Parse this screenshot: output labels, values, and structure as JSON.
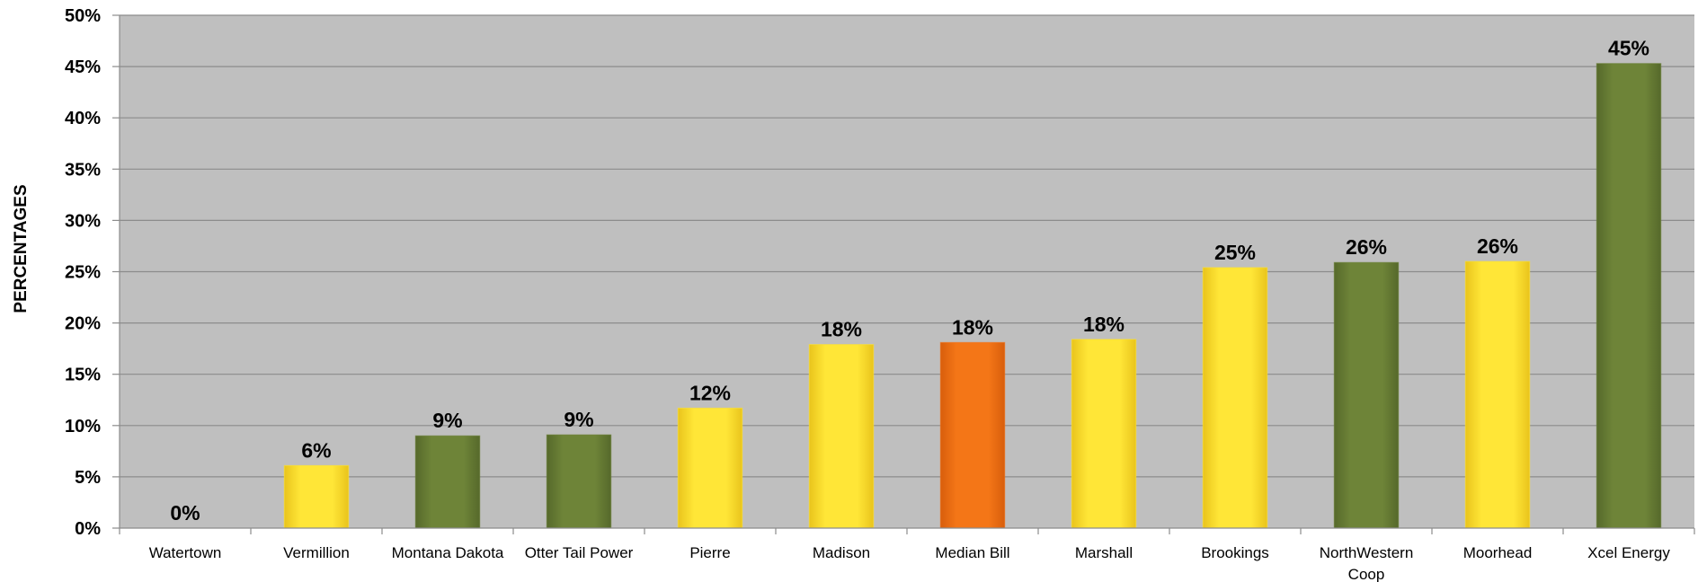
{
  "chart_data": {
    "type": "bar",
    "title": "",
    "xlabel": "",
    "ylabel": "PERCENTAGES",
    "ylim": [
      0,
      50
    ],
    "y_ticks": [
      "0%",
      "5%",
      "10%",
      "15%",
      "20%",
      "25%",
      "30%",
      "35%",
      "40%",
      "45%",
      "50%"
    ],
    "grid": true,
    "legend": "none",
    "plot_background": "#bfbfbf",
    "categories": [
      "Watertown",
      "Vermillion",
      "Montana Dakota",
      "Otter Tail Power",
      "Pierre",
      "Madison",
      "Median Bill",
      "Marshall",
      "Brookings",
      "NorthWestern Coop",
      "Moorhead",
      "Xcel Energy"
    ],
    "values": [
      0,
      6.1,
      9.0,
      9.1,
      11.7,
      17.9,
      18.1,
      18.4,
      25.4,
      25.9,
      26.0,
      45.3
    ],
    "data_labels": [
      "0%",
      "6%",
      "9%",
      "9%",
      "12%",
      "18%",
      "18%",
      "18%",
      "25%",
      "26%",
      "26%",
      "45%"
    ],
    "bar_colors": [
      "#fde22e",
      "#fde22e",
      "#6b8137",
      "#6b8137",
      "#fde22e",
      "#fde22e",
      "#f47215",
      "#fde22e",
      "#fde22e",
      "#6b8137",
      "#fde22e",
      "#6b8137"
    ]
  }
}
